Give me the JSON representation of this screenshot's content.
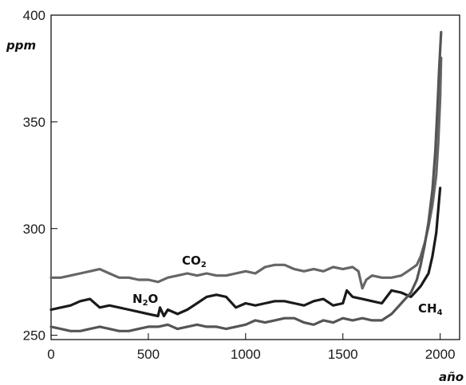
{
  "chart_data": {
    "type": "line",
    "xlabel": "año",
    "ylabel": "ppm",
    "xlim": [
      0,
      2100
    ],
    "ylim": [
      248,
      400
    ],
    "x_ticks": [
      "0",
      "500",
      "1000",
      "1500",
      "2000"
    ],
    "y_ticks": [
      "250",
      "300",
      "350",
      "400"
    ],
    "grid": false,
    "series": [
      {
        "name": "CO₂",
        "label_parts": [
          "CO",
          "2"
        ],
        "color": "#666666",
        "x": [
          0,
          50,
          100,
          150,
          200,
          250,
          300,
          350,
          400,
          450,
          500,
          550,
          600,
          650,
          700,
          750,
          800,
          850,
          900,
          950,
          1000,
          1050,
          1100,
          1150,
          1200,
          1250,
          1300,
          1350,
          1400,
          1450,
          1500,
          1550,
          1580,
          1600,
          1620,
          1650,
          1700,
          1750,
          1800,
          1850,
          1880,
          1900,
          1920,
          1940,
          1960,
          1980,
          1990,
          2000,
          2005
        ],
        "y": [
          277,
          277,
          278,
          279,
          280,
          281,
          279,
          277,
          277,
          276,
          276,
          275,
          277,
          278,
          279,
          278,
          279,
          278,
          278,
          279,
          280,
          279,
          282,
          283,
          283,
          281,
          280,
          281,
          280,
          282,
          281,
          282,
          280,
          272,
          276,
          278,
          277,
          277,
          278,
          281,
          283,
          287,
          293,
          301,
          311,
          325,
          340,
          361,
          380
        ]
      },
      {
        "name": "N₂O",
        "label_parts": [
          "N",
          "2",
          "O"
        ],
        "color": "#1a1a1a",
        "x": [
          0,
          50,
          100,
          150,
          200,
          250,
          300,
          350,
          400,
          450,
          500,
          550,
          560,
          580,
          600,
          650,
          700,
          750,
          800,
          850,
          900,
          950,
          1000,
          1050,
          1100,
          1150,
          1200,
          1250,
          1300,
          1350,
          1400,
          1450,
          1500,
          1520,
          1550,
          1600,
          1650,
          1700,
          1750,
          1800,
          1850,
          1880,
          1900,
          1920,
          1940,
          1960,
          1980,
          2000
        ],
        "y": [
          262,
          263,
          264,
          266,
          267,
          263,
          264,
          263,
          262,
          261,
          260,
          259,
          263,
          259,
          262,
          260,
          262,
          265,
          268,
          269,
          268,
          263,
          265,
          264,
          265,
          266,
          266,
          265,
          264,
          266,
          267,
          264,
          265,
          271,
          268,
          267,
          266,
          265,
          271,
          270,
          268,
          271,
          273,
          276,
          279,
          287,
          298,
          319
        ]
      },
      {
        "name": "CH₄",
        "label_parts": [
          "CH",
          "4"
        ],
        "color": "#555555",
        "x": [
          0,
          50,
          100,
          150,
          200,
          250,
          300,
          350,
          400,
          450,
          500,
          550,
          600,
          650,
          700,
          750,
          800,
          850,
          900,
          950,
          1000,
          1050,
          1100,
          1150,
          1200,
          1250,
          1300,
          1350,
          1400,
          1450,
          1500,
          1550,
          1600,
          1650,
          1700,
          1750,
          1800,
          1850,
          1880,
          1900,
          1920,
          1940,
          1960,
          1975,
          1985,
          1995,
          2005
        ],
        "y": [
          254,
          253,
          252,
          252,
          253,
          254,
          253,
          252,
          252,
          253,
          254,
          254,
          255,
          253,
          254,
          255,
          254,
          254,
          253,
          254,
          255,
          257,
          256,
          257,
          258,
          258,
          256,
          255,
          257,
          256,
          258,
          257,
          258,
          257,
          257,
          260,
          265,
          270,
          276,
          283,
          292,
          303,
          318,
          336,
          355,
          375,
          392
        ]
      }
    ]
  }
}
